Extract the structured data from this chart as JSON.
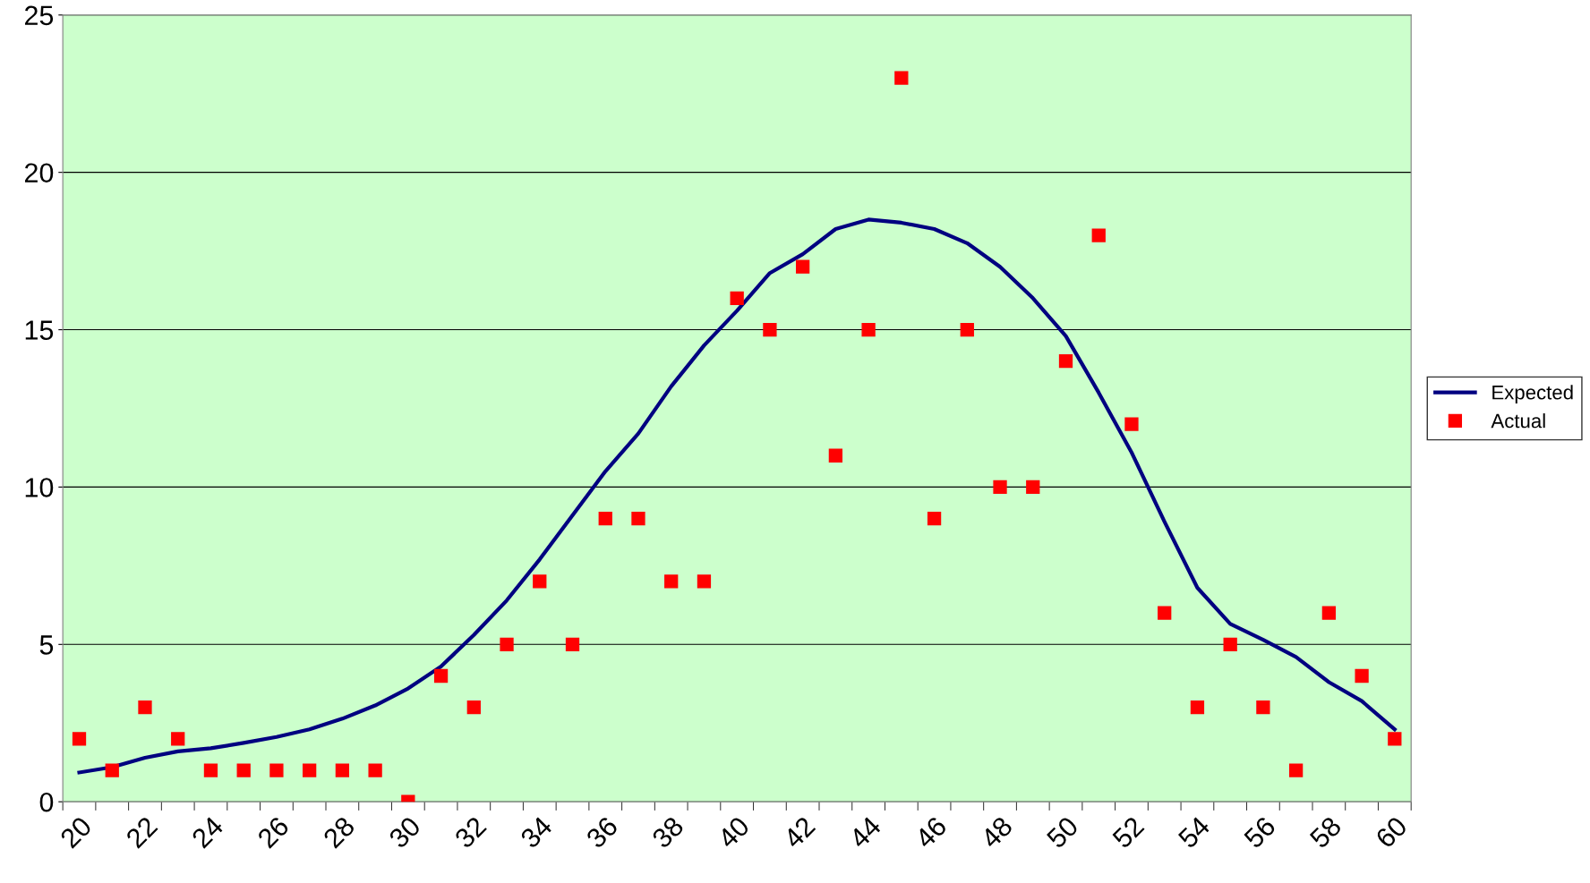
{
  "chart_data": {
    "type": "line",
    "categories": [
      "20",
      null,
      "22",
      null,
      "24",
      null,
      "26",
      null,
      "28",
      null,
      "30",
      null,
      "32",
      null,
      "34",
      null,
      "36",
      null,
      "38",
      null,
      "40",
      null,
      "42",
      null,
      "44",
      null,
      "46",
      null,
      "48",
      null,
      "50",
      null,
      "52",
      null,
      "54",
      null,
      "56",
      null,
      "58",
      null,
      "60"
    ],
    "series": [
      {
        "name": "Expected",
        "color": "#000080",
        "marker": "none",
        "line_style": "solid",
        "values": [
          0.93,
          1.1,
          1.4,
          1.6,
          1.7,
          1.87,
          2.06,
          2.3,
          2.64,
          3.06,
          3.6,
          4.3,
          5.3,
          6.4,
          7.7,
          9.1,
          10.5,
          11.7,
          13.2,
          14.5,
          15.6,
          16.8,
          17.4,
          18.2,
          18.5,
          18.4,
          18.2,
          17.75,
          17.0,
          16.0,
          14.8,
          13.0,
          11.1,
          8.9,
          6.8,
          5.65,
          5.15,
          4.6,
          3.8,
          3.2,
          2.3
        ]
      },
      {
        "name": "Actual",
        "type": "scatter",
        "color": "#ff0000",
        "marker": "square",
        "values": [
          2,
          1,
          3,
          2,
          1,
          1,
          1,
          1,
          1,
          1,
          0,
          4,
          3,
          5,
          7,
          5,
          9,
          9,
          7,
          7,
          16,
          15,
          17,
          11,
          15,
          23,
          9,
          15,
          10,
          10,
          14,
          18,
          12,
          6,
          3,
          5,
          3,
          1,
          6,
          4,
          2
        ]
      }
    ],
    "ylim": [
      0,
      25
    ],
    "yticks": [
      0,
      5,
      10,
      15,
      20,
      25
    ],
    "grid": "y",
    "legend": "right"
  }
}
